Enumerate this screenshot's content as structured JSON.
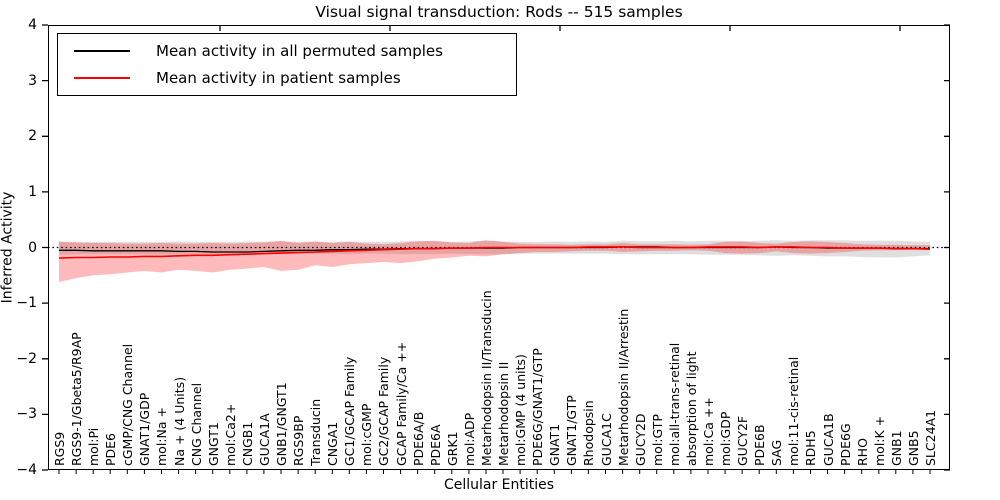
{
  "title": "Visual signal transduction: Rods -- 515 samples",
  "legend": {
    "items": [
      {
        "label": "Mean activity in all permuted samples",
        "color": "#000000"
      },
      {
        "label": "Mean activity in patient samples",
        "color": "#ff0000"
      }
    ]
  },
  "chart_data": {
    "type": "line",
    "title": "Visual signal transduction: Rods -- 515 samples",
    "xlabel": "Cellular Entities",
    "ylabel": "Inferred Activity",
    "ylim": [
      -4,
      4
    ],
    "ytick_labels": [
      "4",
      "3",
      "2",
      "1",
      "0",
      "−1",
      "−2",
      "−3",
      "−4"
    ],
    "ytick_values": [
      4,
      3,
      2,
      1,
      0,
      -1,
      -2,
      -3,
      -4
    ],
    "grid": false,
    "legend_position": "upper left",
    "categories": [
      "RGS9",
      "RGS9-1/Gbeta5/R9AP",
      "mol:Pi",
      "PDE6",
      "cGMP/CNG Channel",
      "GNAT1/GDP",
      "mol:Na +",
      "Na + (4 Units)",
      "CNG Channel",
      "GNGT1",
      "mol:Ca2+",
      "CNGB1",
      "GUCA1A",
      "GNB1/GNGT1",
      "RGS9BP",
      "Transducin",
      "CNGA1",
      "GC1/GCAP Family",
      "mol:cGMP",
      "GC2/GCAP Family",
      "GCAP Family/Ca ++",
      "PDE6A/B",
      "PDE6A",
      "GRK1",
      "mol:ADP",
      "Metarhodopsin II/Transducin",
      "Metarhodopsin II",
      "mol:GMP (4 units)",
      "PDE6G/GNAT1/GTP",
      "GNAT1",
      "GNAT1/GTP",
      "Rhodopsin",
      "GUCA1C",
      "Metarhodopsin II/Arrestin",
      "GUCY2D",
      "mol:GTP",
      "mol:all-trans-retinal",
      "absorption of light",
      "mol:Ca ++",
      "mol:GDP",
      "GUCY2F",
      "PDE6B",
      "SAG",
      "mol:11-cis-retinal",
      "RDH5",
      "GUCA1B",
      "PDE6G",
      "RHO",
      "mol:K +",
      "GNB1",
      "GNB5",
      "SLC24A1"
    ],
    "reference_line": {
      "y": 0,
      "style": "dotted",
      "color": "#000000"
    },
    "series": [
      {
        "name": "Mean activity in all permuted samples",
        "color": "#000000",
        "values": [
          -0.05,
          -0.05,
          -0.06,
          -0.06,
          -0.06,
          -0.06,
          -0.06,
          -0.07,
          -0.07,
          -0.08,
          -0.08,
          -0.08,
          -0.07,
          -0.06,
          -0.05,
          -0.05,
          -0.04,
          -0.04,
          -0.03,
          -0.03,
          -0.02,
          -0.02,
          -0.02,
          -0.01,
          -0.01,
          -0.01,
          -0.01,
          0,
          0,
          0,
          0,
          0,
          0,
          0.01,
          0.01,
          0.01,
          0,
          0,
          0,
          0,
          0,
          0,
          0.01,
          0,
          0,
          -0.01,
          -0.01,
          -0.01,
          -0.01,
          -0.02,
          -0.02,
          -0.02
        ]
      },
      {
        "name": "Mean activity in patient samples",
        "color": "#ff0000",
        "values": [
          -0.19,
          -0.18,
          -0.18,
          -0.17,
          -0.17,
          -0.16,
          -0.16,
          -0.15,
          -0.14,
          -0.14,
          -0.13,
          -0.12,
          -0.11,
          -0.1,
          -0.09,
          -0.08,
          -0.07,
          -0.06,
          -0.05,
          -0.04,
          -0.03,
          -0.02,
          -0.02,
          -0.01,
          -0.01,
          0,
          0,
          0,
          0,
          0,
          0,
          0.01,
          0.01,
          0.01,
          0,
          0,
          0,
          0,
          0.01,
          0.01,
          0.01,
          0,
          0.01,
          0.01,
          0,
          0,
          -0.01,
          -0.01,
          -0.01,
          -0.02,
          -0.02,
          -0.03
        ]
      }
    ],
    "bands": [
      {
        "name": "permuted samples std band",
        "fill": "rgba(80,80,80,0.18)",
        "upper": [
          0.11,
          0.1,
          0.1,
          0.1,
          0.1,
          0.1,
          0.1,
          0.11,
          0.1,
          0.1,
          0.1,
          0.11,
          0.1,
          0.11,
          0.1,
          0.1,
          0.1,
          0.11,
          0.1,
          0.1,
          0.11,
          0.12,
          0.11,
          0.1,
          0.11,
          0.12,
          0.11,
          0.1,
          0.1,
          0.11,
          0.1,
          0.11,
          0.1,
          0.12,
          0.11,
          0.11,
          0.12,
          0.11,
          0.12,
          0.12,
          0.11,
          0.12,
          0.13,
          0.12,
          0.13,
          0.13,
          0.13,
          0.12,
          0.12,
          0.12,
          0.11,
          0.1
        ],
        "lower": [
          -0.13,
          -0.12,
          -0.12,
          -0.12,
          -0.12,
          -0.12,
          -0.12,
          -0.12,
          -0.12,
          -0.12,
          -0.12,
          -0.12,
          -0.12,
          -0.12,
          -0.12,
          -0.11,
          -0.11,
          -0.12,
          -0.11,
          -0.11,
          -0.12,
          -0.12,
          -0.12,
          -0.11,
          -0.12,
          -0.12,
          -0.12,
          -0.11,
          -0.11,
          -0.11,
          -0.11,
          -0.11,
          -0.11,
          -0.12,
          -0.12,
          -0.12,
          -0.12,
          -0.12,
          -0.13,
          -0.13,
          -0.13,
          -0.14,
          -0.15,
          -0.14,
          -0.15,
          -0.16,
          -0.16,
          -0.17,
          -0.18,
          -0.18,
          -0.16,
          -0.14
        ]
      },
      {
        "name": "patient samples std band",
        "fill": "rgba(255,30,30,0.30)",
        "upper": [
          0.1,
          0.09,
          0.08,
          0.08,
          0.07,
          0.07,
          0.08,
          0.07,
          0.07,
          0.08,
          0.07,
          0.08,
          0.09,
          0.12,
          0.08,
          0.11,
          0.08,
          0.1,
          0.07,
          0.06,
          0.08,
          0.11,
          0.12,
          0.09,
          0.08,
          0.13,
          0.1,
          0.07,
          0.06,
          0.06,
          0.05,
          0.06,
          0.06,
          0.08,
          0.06,
          0.06,
          0.06,
          0.05,
          0.06,
          0.1,
          0.11,
          0.08,
          0.07,
          0.1,
          0.11,
          0.1,
          0.08,
          0.06,
          0.05,
          0.05,
          0.04,
          0.04
        ],
        "lower": [
          -0.62,
          -0.55,
          -0.5,
          -0.48,
          -0.45,
          -0.42,
          -0.45,
          -0.4,
          -0.42,
          -0.45,
          -0.4,
          -0.38,
          -0.35,
          -0.42,
          -0.4,
          -0.32,
          -0.35,
          -0.3,
          -0.28,
          -0.26,
          -0.28,
          -0.25,
          -0.2,
          -0.18,
          -0.15,
          -0.16,
          -0.12,
          -0.1,
          -0.08,
          -0.08,
          -0.07,
          -0.06,
          -0.06,
          -0.08,
          -0.07,
          -0.06,
          -0.06,
          -0.05,
          -0.06,
          -0.1,
          -0.11,
          -0.1,
          -0.07,
          -0.1,
          -0.11,
          -0.1,
          -0.08,
          -0.06,
          -0.05,
          -0.05,
          -0.04,
          -0.04
        ]
      }
    ]
  }
}
